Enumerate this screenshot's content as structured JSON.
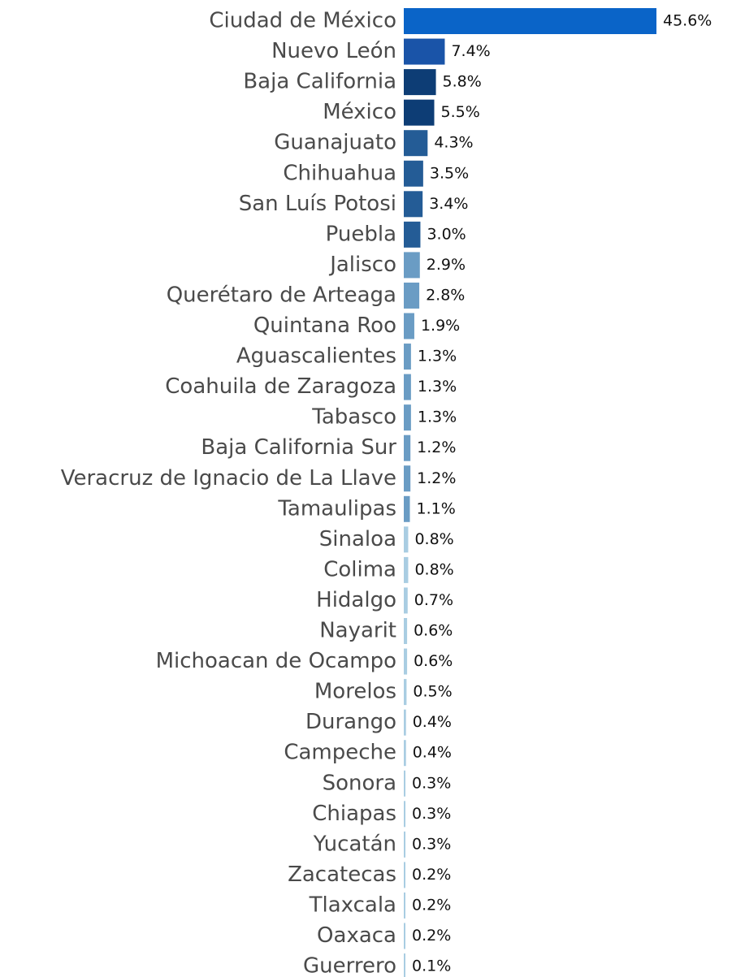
{
  "chart_data": {
    "type": "barh",
    "categories": [
      "Ciudad de México",
      "Nuevo León",
      "Baja California",
      "México",
      "Guanajuato",
      "Chihuahua",
      "San Luís Potosi",
      "Puebla",
      "Jalisco",
      "Querétaro de Arteaga",
      "Quintana Roo",
      "Aguascalientes",
      "Coahuila de Zaragoza",
      "Tabasco",
      "Baja California Sur",
      "Veracruz de Ignacio de La Llave",
      "Tamaulipas",
      "Sinaloa",
      "Colima",
      "Hidalgo",
      "Nayarit",
      "Michoacan de Ocampo",
      "Morelos",
      "Durango",
      "Campeche",
      "Sonora",
      "Chiapas",
      "Yucatán",
      "Zacatecas",
      "Tlaxcala",
      "Oaxaca",
      "Guerrero"
    ],
    "values": [
      45.6,
      7.4,
      5.8,
      5.5,
      4.3,
      3.5,
      3.4,
      3.0,
      2.9,
      2.8,
      1.9,
      1.3,
      1.3,
      1.3,
      1.2,
      1.2,
      1.1,
      0.8,
      0.8,
      0.7,
      0.6,
      0.6,
      0.5,
      0.4,
      0.4,
      0.3,
      0.3,
      0.3,
      0.2,
      0.2,
      0.2,
      0.1
    ],
    "value_labels": [
      "45.6%",
      "7.4%",
      "5.8%",
      "5.5%",
      "4.3%",
      "3.5%",
      "3.4%",
      "3.0%",
      "2.9%",
      "2.8%",
      "1.9%",
      "1.3%",
      "1.3%",
      "1.3%",
      "1.2%",
      "1.2%",
      "1.1%",
      "0.8%",
      "0.8%",
      "0.7%",
      "0.6%",
      "0.6%",
      "0.5%",
      "0.4%",
      "0.4%",
      "0.3%",
      "0.3%",
      "0.3%",
      "0.2%",
      "0.2%",
      "0.2%",
      "0.1%"
    ],
    "colors": [
      "#0a64c8",
      "#1a54a8",
      "#0d3d75",
      "#0d3d75",
      "#245c96",
      "#245c96",
      "#245c96",
      "#245c96",
      "#6a9cc4",
      "#6a9cc4",
      "#6a9cc4",
      "#6a9cc4",
      "#6a9cc4",
      "#6a9cc4",
      "#6a9cc4",
      "#6a9cc4",
      "#6a9cc4",
      "#a9cde2",
      "#a9cde2",
      "#a9cde2",
      "#a9cde2",
      "#a9cde2",
      "#a9cde2",
      "#a9cde2",
      "#a9cde2",
      "#a9cde2",
      "#a9cde2",
      "#a9cde2",
      "#a9cde2",
      "#a9cde2",
      "#a9cde2",
      "#a9cde2"
    ],
    "xlim": [
      0,
      45.6
    ]
  }
}
